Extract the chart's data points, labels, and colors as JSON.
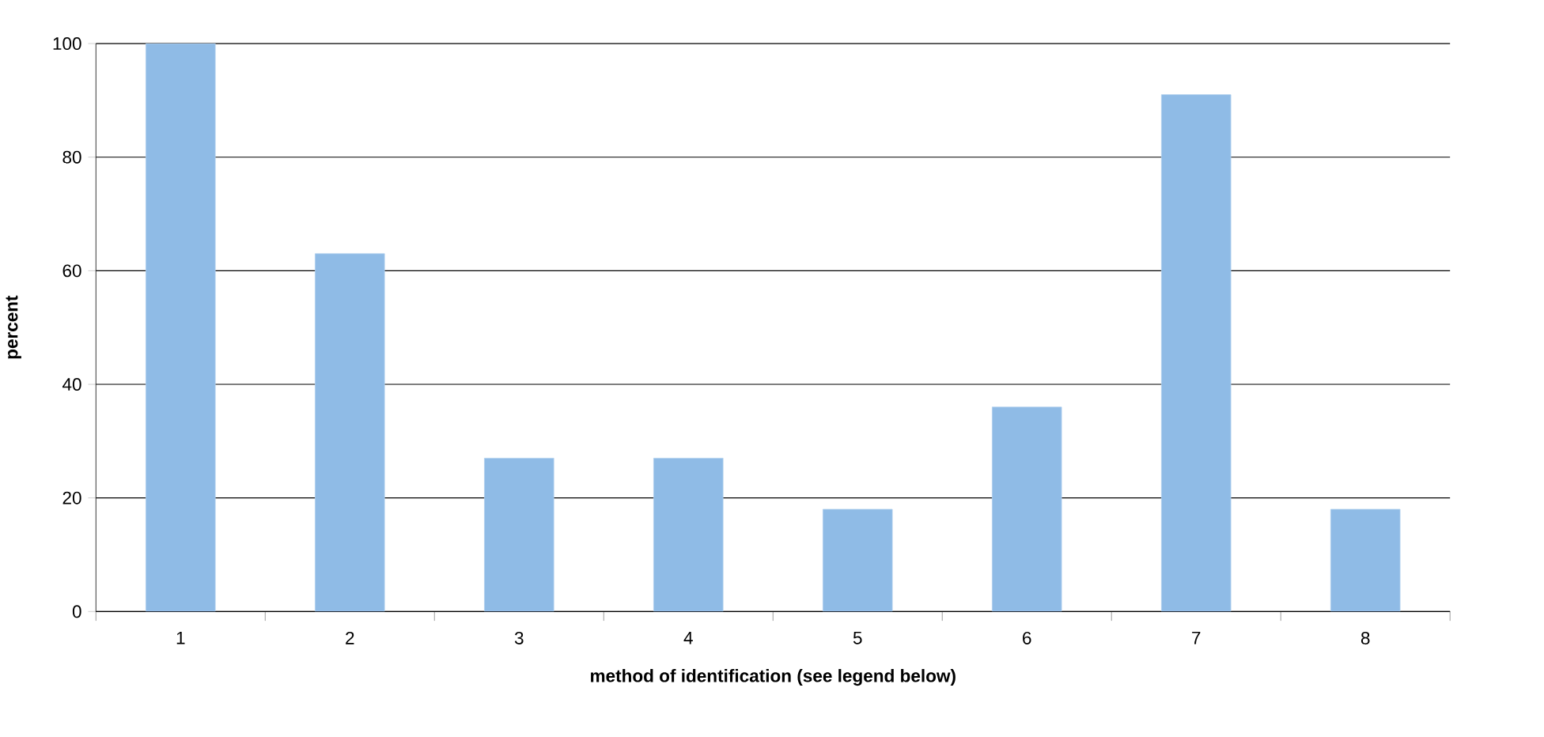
{
  "chart_data": {
    "type": "bar",
    "xlabel": "method of identification (see legend below)",
    "ylabel": "percent",
    "categories": [
      "1",
      "2",
      "3",
      "4",
      "5",
      "6",
      "7",
      "8"
    ],
    "values": [
      100,
      63,
      27,
      27,
      18,
      36,
      91,
      18
    ],
    "color": "#8fbbe6",
    "ylim": [
      0,
      100
    ],
    "yticks": [
      0,
      20,
      40,
      60,
      80,
      100
    ],
    "grid": "y"
  }
}
